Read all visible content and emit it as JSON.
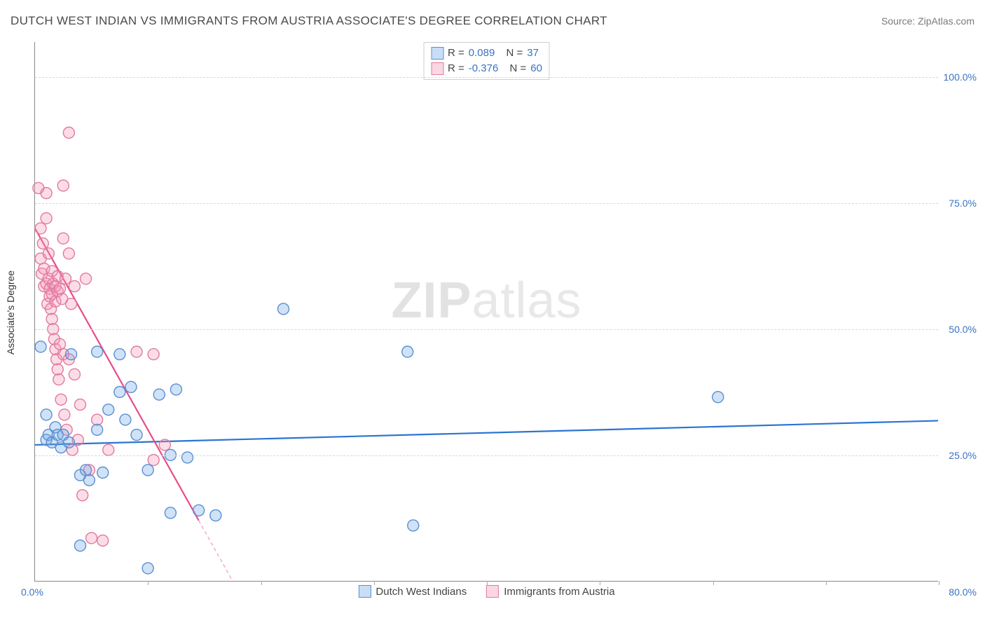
{
  "title": "DUTCH WEST INDIAN VS IMMIGRANTS FROM AUSTRIA ASSOCIATE'S DEGREE CORRELATION CHART",
  "source": "Source: ZipAtlas.com",
  "watermark_a": "ZIP",
  "watermark_b": "atlas",
  "y_axis_title": "Associate's Degree",
  "chart": {
    "type": "scatter",
    "xlim": [
      0,
      80
    ],
    "ylim": [
      0,
      107
    ],
    "x_tick_label_min": "0.0%",
    "x_tick_label_max": "80.0%",
    "y_ticks": [
      25,
      50,
      75,
      100
    ],
    "y_tick_labels": [
      "25.0%",
      "50.0%",
      "75.0%",
      "100.0%"
    ],
    "x_minor_ticks": [
      10,
      20,
      30,
      40,
      50,
      60,
      70,
      80
    ],
    "background_color": "#ffffff",
    "grid_color": "#d8d8d8",
    "marker_radius": 8,
    "marker_stroke_width": 1.4,
    "series": {
      "blue": {
        "label": "Dutch West Indians",
        "fill": "rgba(110,165,230,0.32)",
        "stroke": "#5a8fd0",
        "r_label": "R =",
        "r_value": "0.089",
        "n_label": "N =",
        "n_value": "37",
        "trend": {
          "x1": 0,
          "y1": 27.0,
          "x2": 80,
          "y2": 31.8,
          "color": "#2a74d0",
          "width": 2.2
        },
        "points": [
          [
            0.5,
            46.5
          ],
          [
            1.0,
            33.0
          ],
          [
            1.0,
            28.0
          ],
          [
            1.2,
            29.0
          ],
          [
            1.8,
            30.5
          ],
          [
            1.5,
            27.5
          ],
          [
            2.0,
            29.0
          ],
          [
            2.3,
            26.5
          ],
          [
            2.5,
            29.0
          ],
          [
            3.0,
            27.5
          ],
          [
            3.2,
            45.0
          ],
          [
            4.0,
            21.0
          ],
          [
            4.5,
            22.0
          ],
          [
            4.8,
            20.0
          ],
          [
            5.5,
            45.5
          ],
          [
            5.5,
            30.0
          ],
          [
            6.0,
            21.5
          ],
          [
            6.5,
            34.0
          ],
          [
            7.5,
            37.5
          ],
          [
            7.5,
            45.0
          ],
          [
            8.0,
            32.0
          ],
          [
            8.5,
            38.5
          ],
          [
            9.0,
            29.0
          ],
          [
            10.0,
            22.0
          ],
          [
            10.0,
            2.5
          ],
          [
            11.0,
            37.0
          ],
          [
            12.0,
            13.5
          ],
          [
            12.0,
            25.0
          ],
          [
            12.5,
            38.0
          ],
          [
            13.5,
            24.5
          ],
          [
            14.5,
            14.0
          ],
          [
            16.0,
            13.0
          ],
          [
            22.0,
            54.0
          ],
          [
            33.0,
            45.5
          ],
          [
            33.5,
            11.0
          ],
          [
            60.5,
            36.5
          ],
          [
            4.0,
            7.0
          ]
        ]
      },
      "pink": {
        "label": "Immigrants from Austria",
        "fill": "rgba(245,150,180,0.32)",
        "stroke": "#e07aa0",
        "r_label": "R =",
        "r_value": "-0.376",
        "n_label": "N =",
        "n_value": "60",
        "trend_solid": {
          "x1": 0,
          "y1": 70.0,
          "x2": 14.5,
          "y2": 12.0,
          "color": "#e84c88",
          "width": 2.2
        },
        "trend_dash": {
          "x1": 14.5,
          "y1": 12.0,
          "x2": 17.5,
          "y2": 0.0,
          "color": "#f0a8c0",
          "width": 1.4,
          "dash": "5,4"
        },
        "points": [
          [
            0.3,
            78.0
          ],
          [
            0.5,
            70.0
          ],
          [
            0.5,
            64.0
          ],
          [
            0.6,
            61.0
          ],
          [
            0.7,
            67.0
          ],
          [
            0.8,
            58.5
          ],
          [
            0.8,
            62.0
          ],
          [
            1.0,
            77.0
          ],
          [
            1.0,
            72.0
          ],
          [
            1.0,
            59.0
          ],
          [
            1.1,
            55.0
          ],
          [
            1.2,
            65.0
          ],
          [
            1.2,
            60.0
          ],
          [
            1.3,
            58.0
          ],
          [
            1.3,
            56.5
          ],
          [
            1.4,
            54.0
          ],
          [
            1.5,
            61.5
          ],
          [
            1.5,
            57.0
          ],
          [
            1.5,
            52.0
          ],
          [
            1.6,
            50.0
          ],
          [
            1.6,
            59.0
          ],
          [
            1.7,
            48.0
          ],
          [
            1.8,
            58.5
          ],
          [
            1.8,
            55.5
          ],
          [
            1.8,
            46.0
          ],
          [
            1.9,
            44.0
          ],
          [
            2.0,
            60.5
          ],
          [
            2.0,
            57.5
          ],
          [
            2.0,
            42.0
          ],
          [
            2.1,
            40.0
          ],
          [
            2.2,
            58.0
          ],
          [
            2.2,
            47.0
          ],
          [
            2.3,
            36.0
          ],
          [
            2.4,
            56.0
          ],
          [
            2.5,
            78.5
          ],
          [
            2.5,
            68.0
          ],
          [
            2.5,
            45.0
          ],
          [
            2.6,
            33.0
          ],
          [
            2.7,
            60.0
          ],
          [
            2.8,
            30.0
          ],
          [
            3.0,
            89.0
          ],
          [
            3.0,
            65.0
          ],
          [
            3.0,
            44.0
          ],
          [
            3.2,
            55.0
          ],
          [
            3.3,
            26.0
          ],
          [
            3.5,
            58.5
          ],
          [
            3.5,
            41.0
          ],
          [
            3.8,
            28.0
          ],
          [
            4.0,
            35.0
          ],
          [
            4.2,
            17.0
          ],
          [
            4.5,
            60.0
          ],
          [
            4.8,
            22.0
          ],
          [
            5.0,
            8.5
          ],
          [
            5.5,
            32.0
          ],
          [
            6.0,
            8.0
          ],
          [
            6.5,
            26.0
          ],
          [
            9.0,
            45.5
          ],
          [
            10.5,
            24.0
          ],
          [
            10.5,
            45.0
          ],
          [
            11.5,
            27.0
          ]
        ]
      }
    }
  }
}
